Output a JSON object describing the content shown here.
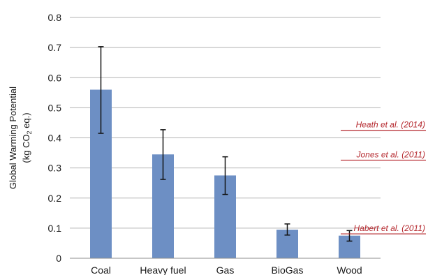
{
  "chart_data": {
    "type": "bar",
    "categories": [
      "Coal",
      "Heavy fuel",
      "Gas",
      "BioGas",
      "Wood"
    ],
    "series": [
      {
        "values": [
          0.56,
          0.345,
          0.275,
          0.095,
          0.075
        ],
        "error_low": [
          0.415,
          0.262,
          0.212,
          0.077,
          0.057
        ],
        "error_high": [
          0.703,
          0.427,
          0.337,
          0.114,
          0.092
        ],
        "color": "#6d8fc4"
      }
    ],
    "ylabel_line1": "Global Warming Potential",
    "ylabel_line2_pre": "(kg CO",
    "ylabel_line2_sub": "2",
    "ylabel_line2_post": " eq.)",
    "ylim": [
      0,
      0.8
    ],
    "yticks": [
      "0",
      "0.1",
      "0.2",
      "0.3",
      "0.4",
      "0.5",
      "0.6",
      "0.7",
      "0.8"
    ],
    "grid": true,
    "reference_lines": [
      {
        "label": "Heath et al. (2014)",
        "value": 0.425,
        "color": "#b5282e"
      },
      {
        "label": "Jones et al. (2011)",
        "value": 0.326,
        "color": "#b5282e"
      },
      {
        "label": "Habert et al. (2011)",
        "value": 0.081,
        "color": "#b5282e"
      }
    ]
  }
}
